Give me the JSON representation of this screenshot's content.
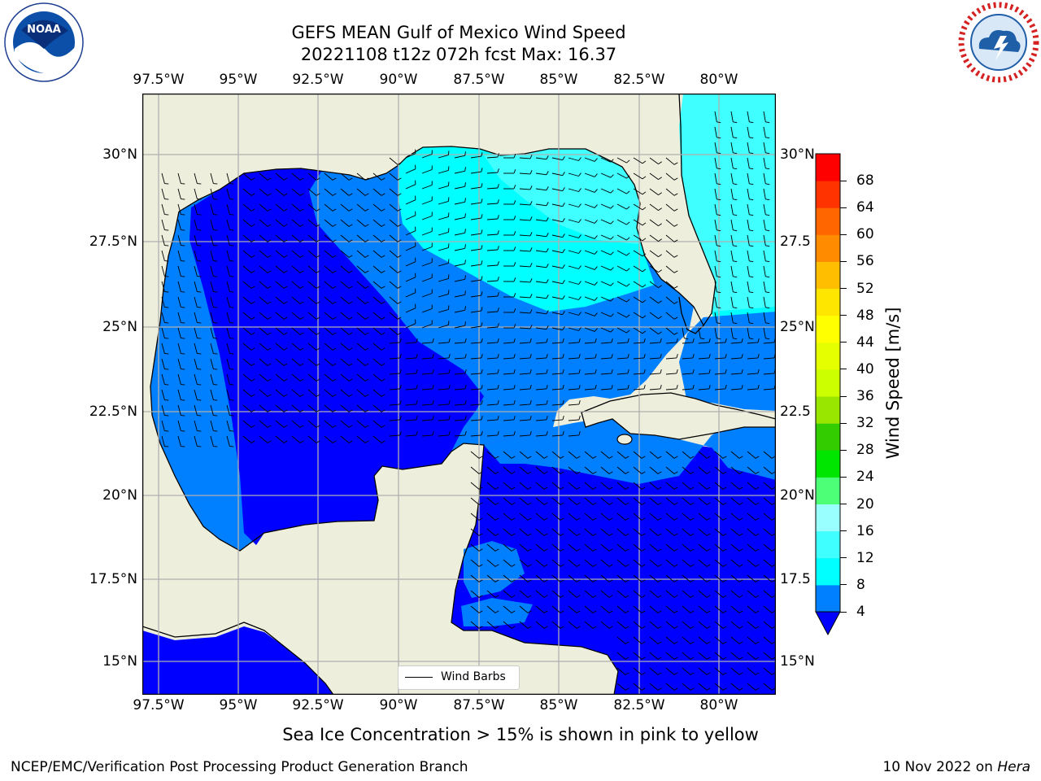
{
  "title": {
    "line1": "GEFS MEAN Gulf of Mexico Wind Speed",
    "line2": "20221108 t12z 072h fcst   Max: 16.37"
  },
  "logos": {
    "noaa": {
      "text": "NOAA",
      "ring_text": "NATIONAL OCEANIC AND ATMOSPHERIC ADMINISTRATION · U.S. DEPARTMENT OF COMMERCE"
    },
    "nws": {
      "ring_text": "NATIONAL WEATHER SERVICE"
    }
  },
  "axes": {
    "lon_labels": [
      "97.5°W",
      "95°W",
      "92.5°W",
      "90°W",
      "87.5°W",
      "85°W",
      "82.5°W",
      "80°W"
    ],
    "lat_labels_left": [
      "30°N",
      "27.5°N",
      "25°N",
      "22.5°N",
      "20°N",
      "17.5°N",
      "15°N"
    ],
    "lat_labels_right": [
      "30°N",
      "27.5",
      "25°N",
      "22.5",
      "20°N",
      "17.5",
      "15°N"
    ],
    "lon_range": [
      -98,
      -78.3
    ],
    "lat_range": [
      14,
      31.8
    ]
  },
  "colorbar": {
    "label": "Wind Speed [m/s]",
    "ticks": [
      "4",
      "8",
      "12",
      "16",
      "20",
      "24",
      "28",
      "32",
      "36",
      "40",
      "44",
      "48",
      "52",
      "56",
      "60",
      "64",
      "68"
    ],
    "colors": [
      "#0000ff",
      "#0080ff",
      "#00ffff",
      "#40ffff",
      "#99ffff",
      "#4cff76",
      "#00e600",
      "#33cc00",
      "#99e600",
      "#ccff00",
      "#e6ff00",
      "#ffff00",
      "#ffe600",
      "#ffbf00",
      "#ff8c00",
      "#ff6600",
      "#ff3300",
      "#ff0000"
    ],
    "extend": "min"
  },
  "map": {
    "land_color": "#eeeedd",
    "field_colors": {
      "4": "#0000ff",
      "8": "#0080ff",
      "12": "#00ffff",
      "16": "#40ffff"
    },
    "max_speed": 16.37
  },
  "legend": {
    "label": "Wind Barbs"
  },
  "footer": {
    "note": "Sea Ice Concentration > 15% is shown in pink to yellow",
    "credit": "NCEP/EMC/Verification Post Processing Product Generation Branch",
    "date": "10 Nov 2022 on ",
    "machine": "Hera"
  }
}
